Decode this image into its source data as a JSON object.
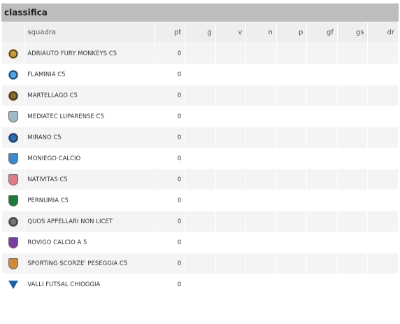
{
  "header": {
    "title": "classifica"
  },
  "columns": [
    "squadra",
    "pt",
    "g",
    "v",
    "n",
    "p",
    "gf",
    "gs",
    "dr"
  ],
  "rows": [
    {
      "name": "ADRIAUTO FURY MONKEYS C5",
      "pt": "0",
      "logo_icon": "monkey-badge-icon",
      "color": "#c8a13a",
      "shape": "badge"
    },
    {
      "name": "FLAMINIA C5",
      "pt": "0",
      "logo_icon": "ball-badge-icon",
      "color": "#4aa8e8",
      "shape": "badge"
    },
    {
      "name": "MARTELLAGO C5",
      "pt": "0",
      "logo_icon": "hammer-badge-icon",
      "color": "#8a6a2a",
      "shape": "badge"
    },
    {
      "name": "MEDIATEC LUPARENSE C5",
      "pt": "0",
      "logo_icon": "wolf-shield-icon",
      "color": "#9fb8c8",
      "shape": "shield"
    },
    {
      "name": "MIRANO C5",
      "pt": "0",
      "logo_icon": "mirano-badge-icon",
      "color": "#2f6fb5",
      "shape": "badge"
    },
    {
      "name": "MONIEGO CALCIO",
      "pt": "0",
      "logo_icon": "moniego-shield-icon",
      "color": "#3a8ad0",
      "shape": "shield"
    },
    {
      "name": "NATIVITAS C5",
      "pt": "0",
      "logo_icon": "nativitas-shield-icon",
      "color": "#e07a8a",
      "shape": "shield"
    },
    {
      "name": "PERNUMIA C5",
      "pt": "0",
      "logo_icon": "pernumia-shield-icon",
      "color": "#1f7a3a",
      "shape": "shield"
    },
    {
      "name": "QUOS APPELLARI NON LICET",
      "pt": "0",
      "logo_icon": "quos-letter-icon",
      "color": "#777777",
      "shape": "badge"
    },
    {
      "name": "ROVIGO CALCIO A 5",
      "pt": "0",
      "logo_icon": "rovigo-shield-icon",
      "color": "#7a3fa0",
      "shape": "shield"
    },
    {
      "name": "SPORTING SCORZE' PESEGGIA C5",
      "pt": "0",
      "logo_icon": "sporting-shield-icon",
      "color": "#d08a3a",
      "shape": "shield"
    },
    {
      "name": "VALLI FUTSAL CHIOGGIA",
      "pt": "0",
      "logo_icon": "valli-v-icon",
      "color": "#1f5fa8",
      "shape": "v"
    }
  ]
}
